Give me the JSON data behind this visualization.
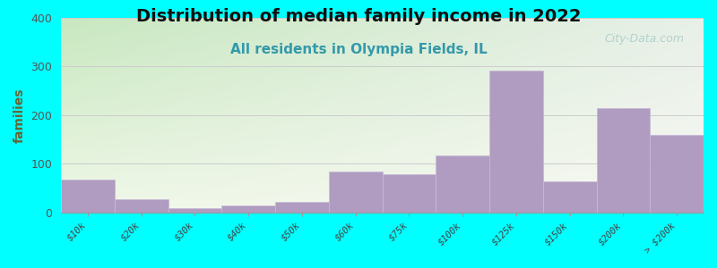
{
  "title": "Distribution of median family income in 2022",
  "subtitle": "All residents in Olympia Fields, IL",
  "ylabel": "families",
  "categories": [
    "$10k",
    "$20k",
    "$30k",
    "$40k",
    "$50k",
    "$60k",
    "$75k",
    "$100k",
    "$125k",
    "$150k",
    "$200k",
    "> $200k"
  ],
  "values": [
    68,
    28,
    10,
    15,
    22,
    85,
    78,
    118,
    292,
    65,
    215,
    160
  ],
  "bar_color": "#b09cc0",
  "bar_edge_color": "#c8b8d8",
  "ylim": [
    0,
    400
  ],
  "yticks": [
    0,
    100,
    200,
    300,
    400
  ],
  "background_color": "#00ffff",
  "bg_color_topleft": "#c8e8c0",
  "bg_color_topright": "#e8f0e8",
  "bg_color_bottomleft": "#f0f8e8",
  "bg_color_bottomright": "#f8f8f4",
  "title_fontsize": 14,
  "subtitle_fontsize": 11,
  "subtitle_color": "#3399aa",
  "watermark": "City-Data.com",
  "watermark_color": "#aacccc",
  "grid_color": "#cccccc",
  "ylabel_color": "#666633",
  "ytick_color": "#555555"
}
